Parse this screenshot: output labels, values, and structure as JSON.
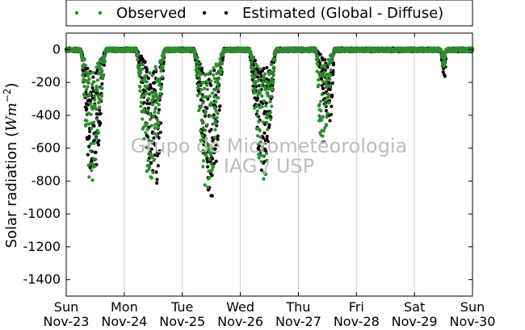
{
  "chart_data": {
    "type": "scatter",
    "ylabel_prefix": "Solar radiation (",
    "ylabel_math": "Wm",
    "ylabel_exp": "−2",
    "ylabel_suffix": ")",
    "ylim": [
      -1500,
      100
    ],
    "yticks": [
      0,
      -200,
      -400,
      -600,
      -800,
      -1000,
      -1200,
      -1400
    ],
    "xlim_days": [
      0,
      7
    ],
    "xticks": [
      {
        "day": 0,
        "weekday": "Sun",
        "date": "Nov-23"
      },
      {
        "day": 1,
        "weekday": "Mon",
        "date": "Nov-24"
      },
      {
        "day": 2,
        "weekday": "Tue",
        "date": "Nov-25"
      },
      {
        "day": 3,
        "weekday": "Wed",
        "date": "Nov-26"
      },
      {
        "day": 4,
        "weekday": "Thu",
        "date": "Nov-27"
      },
      {
        "day": 5,
        "weekday": "Fri",
        "date": "Nov-28"
      },
      {
        "day": 6,
        "weekday": "Sat",
        "date": "Nov-29"
      },
      {
        "day": 7,
        "weekday": "Sun",
        "date": "Nov-30"
      }
    ],
    "grid": "vertical",
    "legend_position": "top",
    "watermark": [
      "Grupo de Micrometeorologia",
      "IAG / USP"
    ],
    "series": [
      {
        "name": "Observed",
        "color": "#2e8b2e",
        "days": [
          {
            "start": 0.25,
            "end": 0.69,
            "peak_time": 0.42,
            "peak": -820
          },
          {
            "start": 1.2,
            "end": 1.7,
            "peak_time": 1.45,
            "peak": -830
          },
          {
            "start": 2.2,
            "end": 2.72,
            "peak_time": 2.43,
            "peak": -890
          },
          {
            "start": 3.15,
            "end": 3.62,
            "peak_time": 3.4,
            "peak": -800
          },
          {
            "start": 4.3,
            "end": 4.62,
            "peak_time": 4.4,
            "peak": -600
          },
          {
            "start": 6.45,
            "end": 6.55,
            "peak_time": 6.5,
            "peak": -110
          }
        ]
      },
      {
        "name": "Estimated (Global - Diffuse)",
        "color": "#000000",
        "days": [
          {
            "start": 0.25,
            "end": 0.69,
            "peak_time": 0.45,
            "peak": -830
          },
          {
            "start": 1.2,
            "end": 1.7,
            "peak_time": 1.55,
            "peak": -820
          },
          {
            "start": 2.2,
            "end": 2.72,
            "peak_time": 2.5,
            "peak": -900
          },
          {
            "start": 3.15,
            "end": 3.62,
            "peak_time": 3.4,
            "peak": -760
          },
          {
            "start": 4.3,
            "end": 4.62,
            "peak_time": 4.55,
            "peak": -450
          },
          {
            "start": 6.45,
            "end": 6.55,
            "peak_time": 6.52,
            "peak": -180
          }
        ]
      }
    ]
  }
}
